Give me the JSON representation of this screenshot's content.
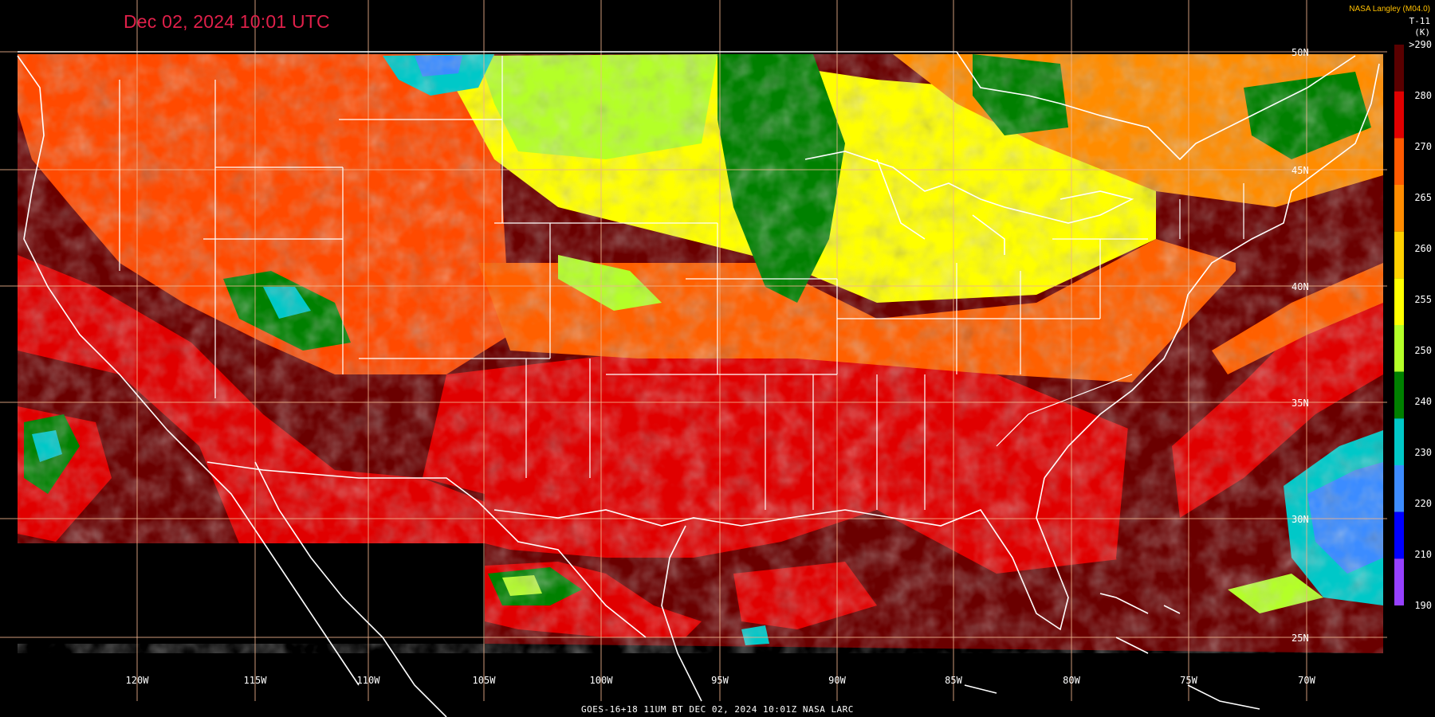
{
  "title": "Dec 02, 2024 10:01 UTC",
  "credit": "NASA Langley (M04.0)",
  "footer": "GOES-16+18  11UM BT  DEC 02, 2024 10:01Z  NASA LARC",
  "colorbar": {
    "title": "T-11",
    "unit": "(K)",
    "labels": [
      ">290",
      "280",
      "270",
      "265",
      "260",
      "255",
      "250",
      "240",
      "230",
      "220",
      "210",
      "190"
    ],
    "colors": [
      "#5a0000",
      "#e00000",
      "#ff5a00",
      "#ff8c00",
      "#ffd000",
      "#ffff00",
      "#b4ff28",
      "#008000",
      "#00c8c8",
      "#3c8cff",
      "#0000ff",
      "#9640ff"
    ]
  },
  "longitudes": [
    "120W",
    "115W",
    "110W",
    "105W",
    "100W",
    "95W",
    "90W",
    "85W",
    "80W",
    "75W",
    "70W"
  ],
  "latitudes": [
    "50N",
    "45N",
    "40N",
    "35N",
    "30N",
    "25N"
  ]
}
